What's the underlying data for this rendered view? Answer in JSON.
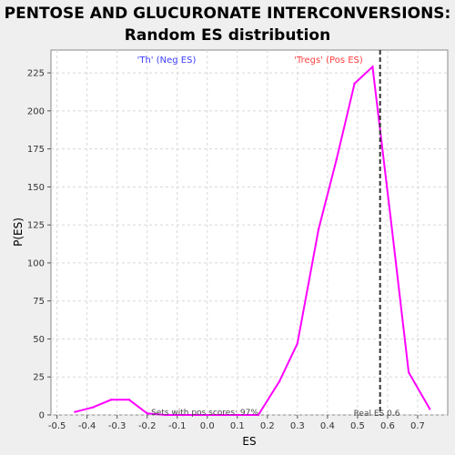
{
  "chart_data": {
    "type": "line",
    "title_line1": "PENTOSE AND GLUCURONATE INTERCONVERSIONS:",
    "title_line2": "Random ES distribution",
    "xlabel": "ES",
    "ylabel": "P(ES)",
    "xlim": [
      -0.52,
      0.8
    ],
    "ylim": [
      0,
      240
    ],
    "xticks": [
      -0.5,
      -0.4,
      -0.3,
      -0.2,
      -0.1,
      0.0,
      0.1,
      0.2,
      0.3,
      0.4,
      0.5,
      0.6,
      0.7
    ],
    "xtick_labels": [
      "-0.5",
      "-0.4",
      "-0.3",
      "-0.2",
      "-0.1",
      "0.0",
      "0.1",
      "0.2",
      "0.3",
      "0.4",
      "0.5",
      "0.6",
      "0.7"
    ],
    "yticks": [
      0,
      25,
      50,
      75,
      100,
      125,
      150,
      175,
      200,
      225
    ],
    "ytick_labels": [
      "0",
      "25",
      "50",
      "75",
      "100",
      "125",
      "150",
      "175",
      "200",
      "225"
    ],
    "grid": true,
    "series": [
      {
        "color": "#ff00ff",
        "x": [
          -0.44,
          -0.38,
          -0.32,
          -0.26,
          -0.2,
          -0.14,
          -0.08,
          -0.02,
          0.04,
          0.1,
          0.17,
          0.24,
          0.3,
          0.37,
          0.43,
          0.49,
          0.55,
          0.61,
          0.67,
          0.74
        ],
        "y": [
          2,
          5,
          10,
          10,
          1,
          0,
          0,
          0,
          0,
          0,
          0,
          22,
          47,
          122,
          168,
          218,
          229,
          130,
          28,
          4
        ]
      }
    ],
    "real_es": 0.575,
    "real_es_label": "Real ES 0.6",
    "pos_scores_label": "Sets with pos scores: 97%",
    "legend_neg": "'Th' (Neg ES)",
    "legend_pos": "'Tregs' (Pos ES)"
  }
}
